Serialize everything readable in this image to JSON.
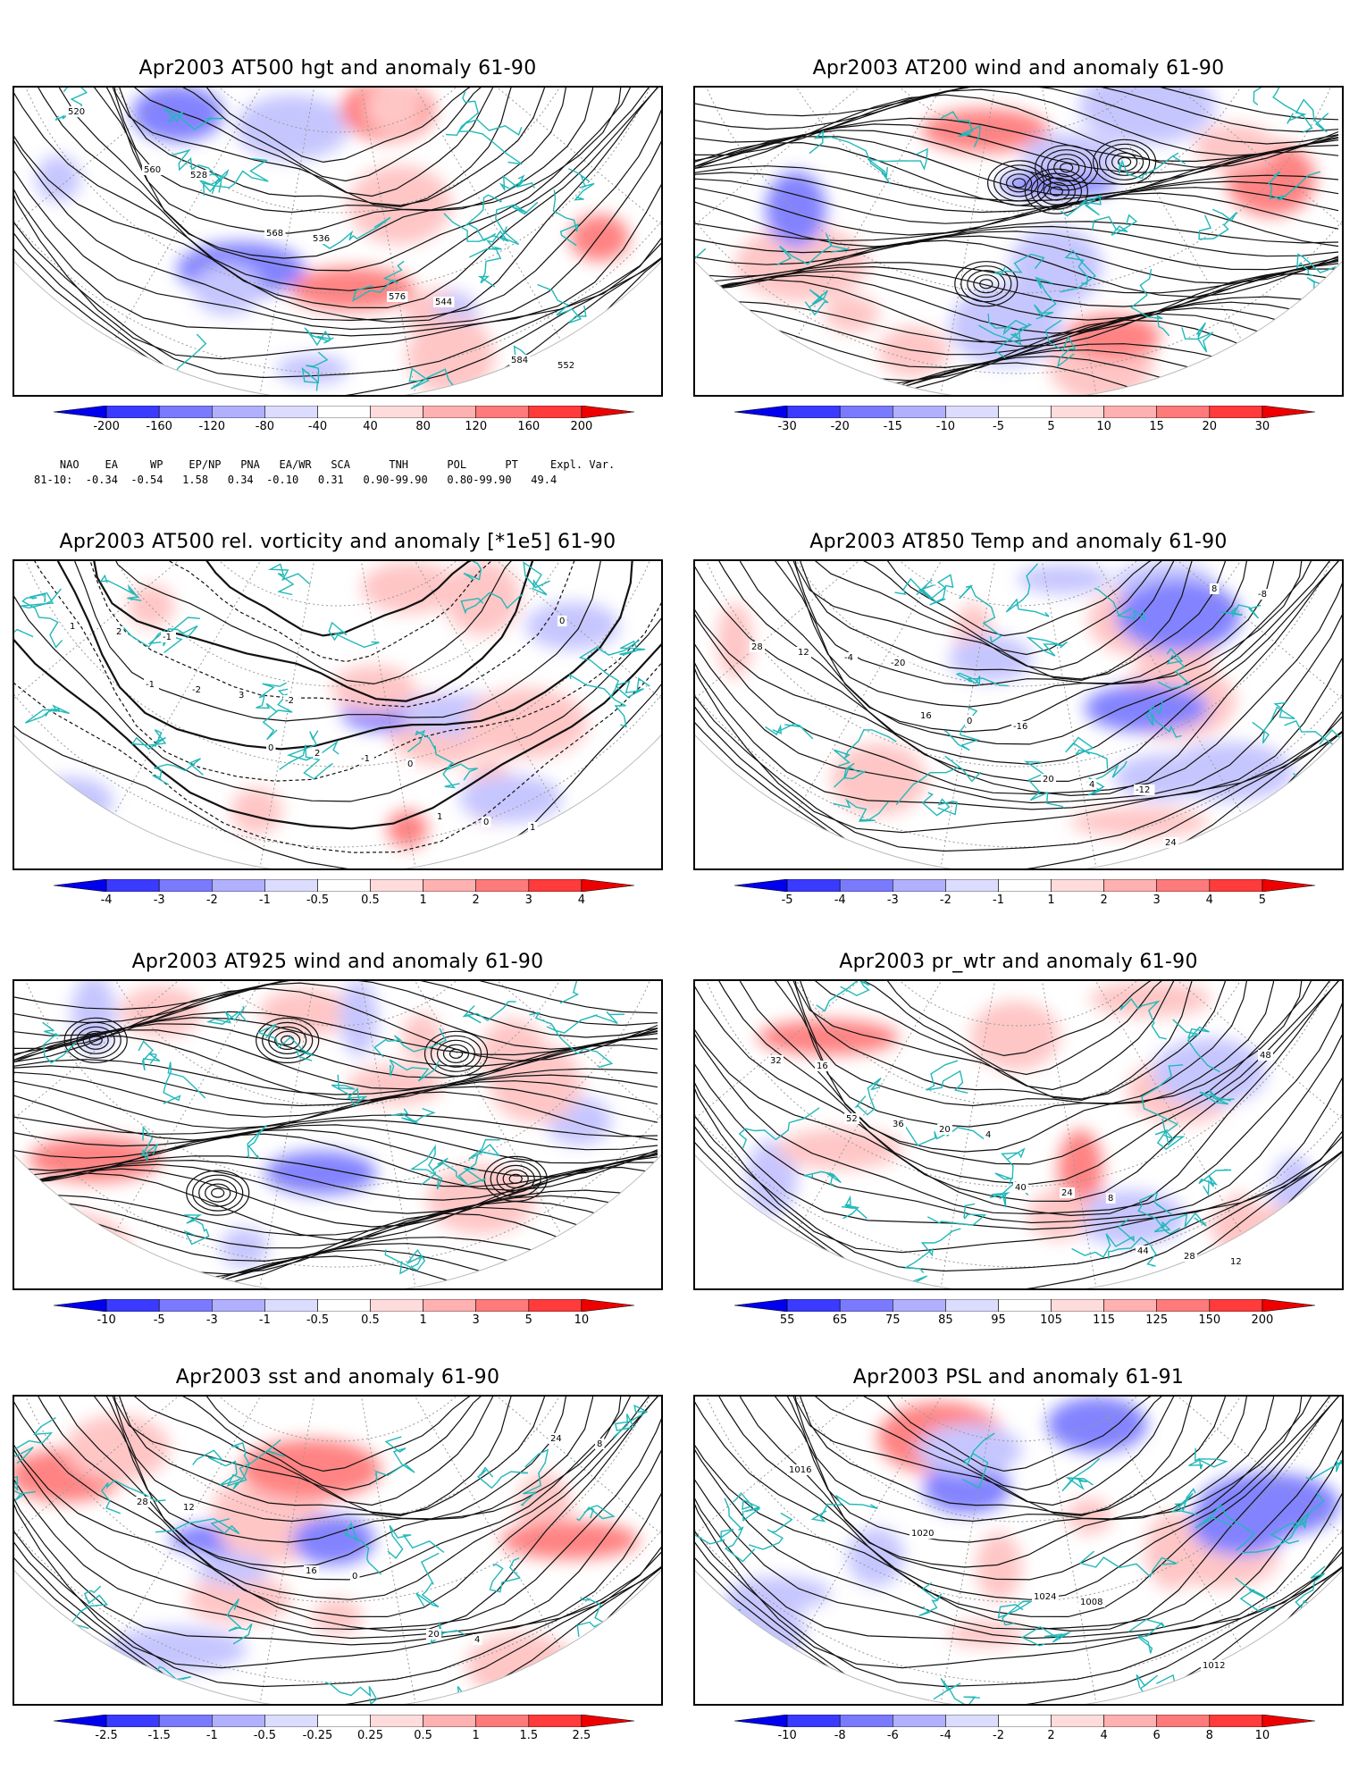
{
  "figure": {
    "colors": {
      "coast": "#22b8b8",
      "contour": "#111111",
      "neg": "#3a3aff",
      "pos": "#ff3a3a",
      "grid": "#9a9a9a"
    },
    "panels": [
      {
        "id": "hgt500",
        "title": "Apr2003 AT500 hgt and anomaly 61-90",
        "kind": "height",
        "contour_labels": [
          "520",
          "528",
          "536",
          "544",
          "552",
          "560",
          "568",
          "576",
          "584"
        ],
        "colorbar": [
          "-200",
          "-160",
          "-120",
          "-80",
          "-40",
          "40",
          "80",
          "120",
          "160",
          "200"
        ]
      },
      {
        "id": "wind200",
        "title": "Apr2003 AT200 wind and anomaly 61-90",
        "kind": "stream",
        "contour_labels": [],
        "colorbar": [
          "-30",
          "-20",
          "-15",
          "-10",
          "-5",
          "5",
          "10",
          "15",
          "20",
          "30"
        ]
      },
      {
        "id": "vort500",
        "title": "Apr2003 AT500 rel. vorticity and anomaly [*1e5] 61-90",
        "kind": "vorticity",
        "contour_labels": [
          "-1",
          "-2",
          "0",
          "1",
          "2",
          "3",
          "-1",
          "0",
          "1",
          "-2",
          "2",
          "1",
          "0",
          "-1",
          "0"
        ],
        "colorbar": [
          "-4",
          "-3",
          "-2",
          "-1",
          "-0.5",
          "0.5",
          "1",
          "2",
          "3",
          "4"
        ]
      },
      {
        "id": "temp850",
        "title": "Apr2003 AT850 Temp and anomaly 61-90",
        "kind": "temp",
        "contour_labels": [
          "-20",
          "-16",
          "-12",
          "-8",
          "-4",
          "0",
          "4",
          "8",
          "12",
          "16",
          "20",
          "24",
          "28"
        ],
        "colorbar": [
          "-5",
          "-4",
          "-3",
          "-2",
          "-1",
          "1",
          "2",
          "3",
          "4",
          "5"
        ]
      },
      {
        "id": "wind925",
        "title": "Apr2003 AT925 wind and anomaly 61-90",
        "kind": "stream",
        "contour_labels": [],
        "colorbar": [
          "-10",
          "-5",
          "-3",
          "-1",
          "-0.5",
          "0.5",
          "1",
          "3",
          "5",
          "10"
        ]
      },
      {
        "id": "prwtr",
        "title": "Apr2003 pr_wtr and anomaly 61-90",
        "kind": "prwtr",
        "contour_labels": [
          "4",
          "8",
          "12",
          "16",
          "20",
          "24",
          "28",
          "32",
          "36",
          "40",
          "44",
          "48",
          "52"
        ],
        "colorbar": [
          "55",
          "65",
          "75",
          "85",
          "95",
          "105",
          "115",
          "125",
          "150",
          "200"
        ]
      },
      {
        "id": "sst",
        "title": "Apr2003 sst and anomaly 61-90",
        "kind": "sst",
        "contour_labels": [
          "0",
          "4",
          "8",
          "12",
          "16",
          "20",
          "24",
          "28"
        ],
        "colorbar": [
          "-2.5",
          "-1.5",
          "-1",
          "-0.5",
          "-0.25",
          "0.25",
          "0.5",
          "1",
          "1.5",
          "2.5"
        ]
      },
      {
        "id": "psl",
        "title": "Apr2003 PSL and anomaly 61-91",
        "kind": "psl",
        "contour_labels": [
          "1008",
          "1012",
          "1016",
          "1020",
          "1024"
        ],
        "colorbar": [
          "-10",
          "-8",
          "-6",
          "-4",
          "-2",
          "2",
          "4",
          "6",
          "8",
          "10"
        ]
      }
    ],
    "teleconnections": {
      "header": "    NAO    EA     WP    EP/NP   PNA   EA/WR   SCA      TNH      POL      PT     Expl. Var.",
      "values": "81-10:  -0.34  -0.54   1.58   0.34  -0.10   0.31   0.90-99.90   0.80-99.90   49.4"
    }
  }
}
